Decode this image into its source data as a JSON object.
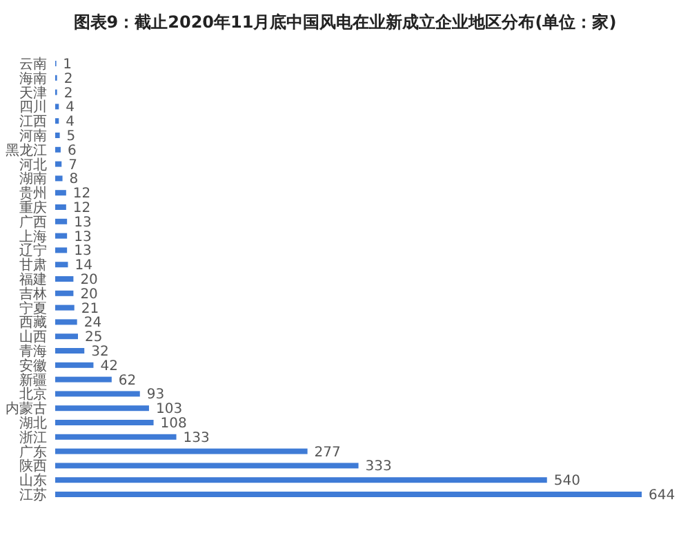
{
  "chart_data": {
    "type": "bar",
    "orientation": "horizontal",
    "title": "图表9：截止2020年11月底中国风电在业新成立企业地区分布(单位：家)",
    "categories": [
      "云南",
      "海南",
      "天津",
      "四川",
      "江西",
      "河南",
      "黑龙江",
      "河北",
      "湖南",
      "贵州",
      "重庆",
      "广西",
      "上海",
      "辽宁",
      "甘肃",
      "福建",
      "吉林",
      "宁夏",
      "西藏",
      "山西",
      "青海",
      "安徽",
      "新疆",
      "北京",
      "内蒙古",
      "湖北",
      "浙江",
      "广东",
      "陕西",
      "山东",
      "江苏"
    ],
    "values": [
      1,
      2,
      2,
      4,
      4,
      5,
      6,
      7,
      8,
      12,
      12,
      13,
      13,
      13,
      14,
      20,
      20,
      21,
      24,
      25,
      32,
      42,
      62,
      93,
      103,
      108,
      133,
      277,
      333,
      540,
      644
    ],
    "color": "#3f7bd6",
    "data_labels": true
  }
}
